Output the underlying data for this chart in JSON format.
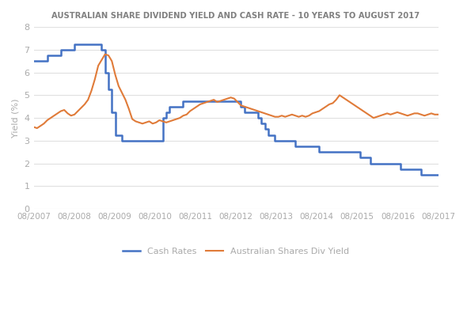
{
  "title": "AUSTRALIAN SHARE DIVIDEND YIELD AND CASH RATE - 10 YEARS TO AUGUST 2017",
  "ylabel": "Yield (%)",
  "ylim": [
    0,
    8
  ],
  "yticks": [
    0,
    1,
    2,
    3,
    4,
    5,
    6,
    7,
    8
  ],
  "xtick_labels": [
    "08/2007",
    "08/2008",
    "08/2009",
    "08/2010",
    "08/2011",
    "08/2012",
    "08/2013",
    "08/2014",
    "08/2015",
    "08/2016",
    "08/2017"
  ],
  "cash_rates_color": "#4472C4",
  "div_yield_color": "#E07B39",
  "title_color": "#808080",
  "axis_color": "#AAAAAA",
  "background_color": "#FFFFFF",
  "legend_labels": [
    "Cash Rates",
    "Australian Shares Div Yield"
  ],
  "cash_rates": [
    6.5,
    6.5,
    6.5,
    6.5,
    6.75,
    6.75,
    6.75,
    6.75,
    7.0,
    7.0,
    7.0,
    7.0,
    7.25,
    7.25,
    7.25,
    7.25,
    7.25,
    7.25,
    7.25,
    7.25,
    7.0,
    6.0,
    5.25,
    4.25,
    3.25,
    3.25,
    3.0,
    3.0,
    3.0,
    3.0,
    3.0,
    3.0,
    3.0,
    3.0,
    3.0,
    3.0,
    3.0,
    3.0,
    4.0,
    4.25,
    4.5,
    4.5,
    4.5,
    4.5,
    4.75,
    4.75,
    4.75,
    4.75,
    4.75,
    4.75,
    4.75,
    4.75,
    4.75,
    4.75,
    4.75,
    4.75,
    4.75,
    4.75,
    4.75,
    4.75,
    4.75,
    4.5,
    4.25,
    4.25,
    4.25,
    4.25,
    4.0,
    3.75,
    3.5,
    3.25,
    3.25,
    3.0,
    3.0,
    3.0,
    3.0,
    3.0,
    3.0,
    2.75,
    2.75,
    2.75,
    2.75,
    2.75,
    2.75,
    2.75,
    2.5,
    2.5,
    2.5,
    2.5,
    2.5,
    2.5,
    2.5,
    2.5,
    2.5,
    2.5,
    2.5,
    2.5,
    2.25,
    2.25,
    2.25,
    2.0,
    2.0,
    2.0,
    2.0,
    2.0,
    2.0,
    2.0,
    2.0,
    2.0,
    1.75,
    1.75,
    1.75,
    1.75,
    1.75,
    1.75,
    1.5,
    1.5,
    1.5,
    1.5,
    1.5,
    1.5
  ],
  "div_yield": [
    3.6,
    3.55,
    3.65,
    3.75,
    3.9,
    4.0,
    4.1,
    4.2,
    4.3,
    4.35,
    4.2,
    4.1,
    4.15,
    4.3,
    4.45,
    4.6,
    4.8,
    5.2,
    5.7,
    6.3,
    6.55,
    6.8,
    6.75,
    6.5,
    5.9,
    5.4,
    5.1,
    4.8,
    4.4,
    3.95,
    3.85,
    3.8,
    3.75,
    3.8,
    3.85,
    3.75,
    3.8,
    3.9,
    3.85,
    3.8,
    3.85,
    3.9,
    3.95,
    4.0,
    4.1,
    4.15,
    4.3,
    4.4,
    4.5,
    4.6,
    4.65,
    4.7,
    4.75,
    4.8,
    4.7,
    4.75,
    4.8,
    4.85,
    4.9,
    4.85,
    4.7,
    4.55,
    4.5,
    4.45,
    4.4,
    4.35,
    4.3,
    4.25,
    4.2,
    4.15,
    4.1,
    4.05,
    4.05,
    4.1,
    4.05,
    4.1,
    4.15,
    4.1,
    4.05,
    4.1,
    4.05,
    4.1,
    4.2,
    4.25,
    4.3,
    4.4,
    4.5,
    4.6,
    4.65,
    4.8,
    5.0,
    4.9,
    4.8,
    4.7,
    4.6,
    4.5,
    4.4,
    4.3,
    4.2,
    4.1,
    4.0,
    4.05,
    4.1,
    4.15,
    4.2,
    4.15,
    4.2,
    4.25,
    4.2,
    4.15,
    4.1,
    4.15,
    4.2,
    4.2,
    4.15,
    4.1,
    4.15,
    4.2,
    4.15,
    4.15
  ]
}
